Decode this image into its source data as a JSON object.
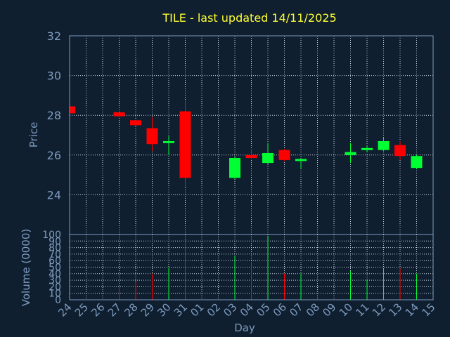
{
  "chart_data": [
    {
      "type": "candlestick",
      "title": "TILE - last updated 14/11/2025",
      "ylabel": "Price",
      "ylim": [
        22,
        32
      ],
      "yticks": [
        "24",
        "26",
        "28",
        "30",
        "32"
      ],
      "up_color": "#00ff33",
      "down_color": "#ff0000",
      "grid": true,
      "candles": [
        {
          "day": "24",
          "open": 28.45,
          "high": 28.45,
          "low": 28.1,
          "close": 28.1
        },
        {
          "day": "27",
          "open": 28.15,
          "high": 28.15,
          "low": 27.9,
          "close": 27.95
        },
        {
          "day": "28",
          "open": 27.75,
          "high": 27.75,
          "low": 27.45,
          "close": 27.5
        },
        {
          "day": "29",
          "open": 27.35,
          "high": 27.9,
          "low": 26.2,
          "close": 26.55
        },
        {
          "day": "30",
          "open": 26.6,
          "high": 26.95,
          "low": 26.0,
          "close": 26.7
        },
        {
          "day": "31",
          "open": 28.2,
          "high": 28.75,
          "low": 24.4,
          "close": 24.85
        },
        {
          "day": "03",
          "open": 24.85,
          "high": 25.9,
          "low": 24.8,
          "close": 25.85
        },
        {
          "day": "04",
          "open": 26.0,
          "high": 26.3,
          "low": 25.8,
          "close": 25.85
        },
        {
          "day": "05",
          "open": 25.6,
          "high": 26.6,
          "low": 25.55,
          "close": 26.1
        },
        {
          "day": "06",
          "open": 26.25,
          "high": 26.3,
          "low": 25.7,
          "close": 25.75
        },
        {
          "day": "07",
          "open": 25.7,
          "high": 25.8,
          "low": 25.3,
          "close": 25.75
        },
        {
          "day": "10",
          "open": 26.0,
          "high": 26.6,
          "low": 25.6,
          "close": 26.15
        },
        {
          "day": "11",
          "open": 26.3,
          "high": 26.45,
          "low": 26.15,
          "close": 26.3
        },
        {
          "day": "12",
          "open": 26.25,
          "high": 26.9,
          "low": 26.2,
          "close": 26.7
        },
        {
          "day": "13",
          "open": 26.5,
          "high": 26.7,
          "low": 25.75,
          "close": 25.95
        },
        {
          "day": "14",
          "open": 25.35,
          "high": 26.0,
          "low": 25.3,
          "close": 25.95
        }
      ]
    },
    {
      "type": "bar",
      "xlabel": "Day",
      "ylabel": "Volume (0000)",
      "ylim": [
        0,
        100
      ],
      "yticks": [
        "0",
        "10",
        "20",
        "30",
        "40",
        "50",
        "60",
        "70",
        "80",
        "90",
        "100"
      ],
      "categories": [
        "24",
        "25",
        "26",
        "27",
        "28",
        "29",
        "30",
        "31",
        "01",
        "02",
        "03",
        "04",
        "05",
        "06",
        "07",
        "08",
        "09",
        "10",
        "11",
        "12",
        "13",
        "14",
        "15"
      ],
      "volumes": [
        {
          "day": "27",
          "value": 22,
          "direction": "down"
        },
        {
          "day": "28",
          "value": 27,
          "direction": "down"
        },
        {
          "day": "29",
          "value": 40,
          "direction": "down"
        },
        {
          "day": "30",
          "value": 49,
          "direction": "up"
        },
        {
          "day": "31",
          "value": 92,
          "direction": "down"
        },
        {
          "day": "03",
          "value": 68,
          "direction": "up"
        },
        {
          "day": "04",
          "value": 58,
          "direction": "down"
        },
        {
          "day": "05",
          "value": 98,
          "direction": "up"
        },
        {
          "day": "06",
          "value": 40,
          "direction": "down"
        },
        {
          "day": "07",
          "value": 40,
          "direction": "up"
        },
        {
          "day": "10",
          "value": 44,
          "direction": "up"
        },
        {
          "day": "11",
          "value": 30,
          "direction": "up"
        },
        {
          "day": "12",
          "value": 48,
          "direction": "up"
        },
        {
          "day": "13",
          "value": 48,
          "direction": "down"
        },
        {
          "day": "14",
          "value": 40,
          "direction": "up"
        }
      ]
    }
  ]
}
